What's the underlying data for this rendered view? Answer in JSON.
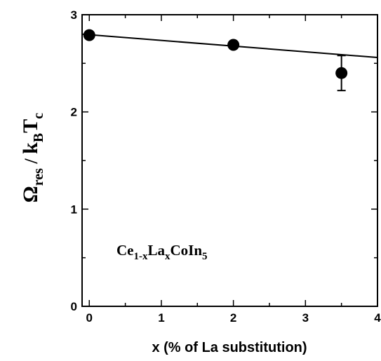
{
  "chart_data": {
    "type": "scatter",
    "title": "",
    "xlabel": "x (% of La substitution)",
    "ylabel": {
      "omega": "Ω",
      "omega_sub": "res",
      "slash": " / ",
      "k": "k",
      "k_sub": "B",
      "T": "T",
      "T_sub": "c"
    },
    "xlim": [
      -0.1,
      4.0
    ],
    "ylim": [
      0,
      3
    ],
    "xticks": [
      0,
      1,
      2,
      3,
      4
    ],
    "yticks": [
      0,
      1,
      2,
      3
    ],
    "xtick_labels": [
      "0",
      "1",
      "2",
      "3",
      "4"
    ],
    "ytick_labels": [
      "0",
      "1",
      "2",
      "3"
    ],
    "x_minor_step": 0.5,
    "y_minor_step": 0.5,
    "grid": false,
    "series": [
      {
        "points": [
          {
            "x": 0,
            "y": 2.79
          },
          {
            "x": 2,
            "y": 2.69
          },
          {
            "x": 3.5,
            "y": 2.4,
            "yerr": 0.18
          }
        ]
      }
    ],
    "fit_line": {
      "x": [
        -0.1,
        4.0
      ],
      "y": [
        2.8,
        2.56
      ]
    },
    "annotation": {
      "parts": [
        {
          "text": "Ce",
          "sub": false
        },
        {
          "text": "1-x",
          "sub": true
        },
        {
          "text": "La",
          "sub": false
        },
        {
          "text": "x",
          "sub": true
        },
        {
          "text": "CoIn",
          "sub": false
        },
        {
          "text": "5",
          "sub": true
        }
      ]
    }
  }
}
